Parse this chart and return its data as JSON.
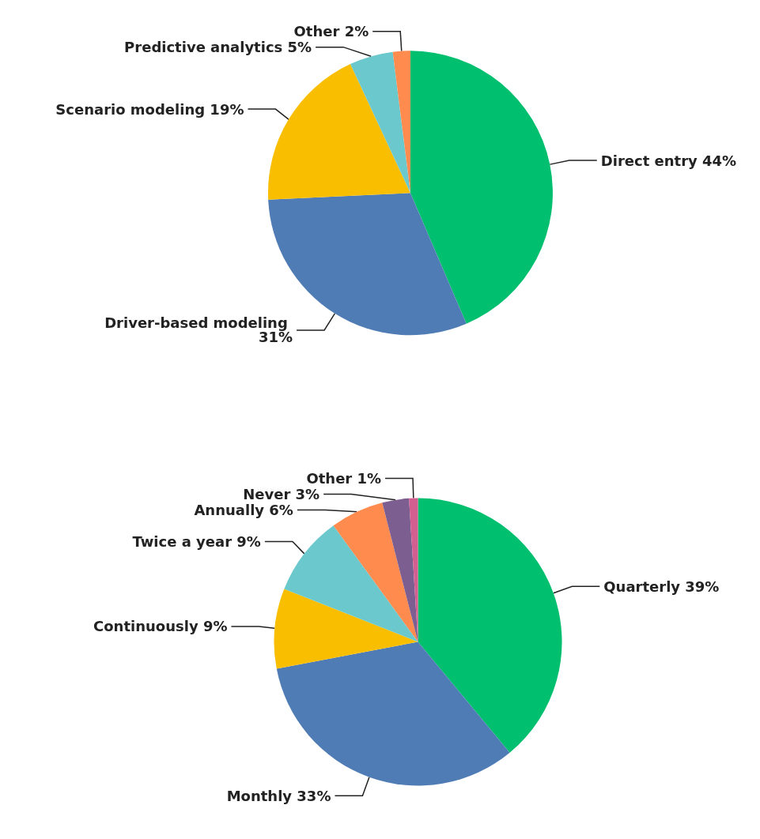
{
  "chart_data": [
    {
      "type": "pie",
      "categories": [
        "Direct entry",
        "Driver-based modeling",
        "Scenario modeling",
        "Predictive analytics",
        "Other"
      ],
      "values": [
        44,
        31,
        19,
        5,
        2
      ],
      "colors": [
        "#00bf6f",
        "#507cb6",
        "#f9be00",
        "#6bc8cd",
        "#ff8b4f"
      ],
      "value_labels": [
        "44%",
        "31%",
        "19%",
        "5%",
        "2%"
      ]
    },
    {
      "type": "pie",
      "categories": [
        "Quarterly",
        "Monthly",
        "Continuously",
        "Twice a year",
        "Annually",
        "Never",
        "Other"
      ],
      "values": [
        39,
        33,
        9,
        9,
        6,
        3,
        1
      ],
      "colors": [
        "#00bf6f",
        "#507cb6",
        "#f9be00",
        "#6bc8cd",
        "#ff8b4f",
        "#7d5e90",
        "#d25f90"
      ],
      "value_labels": [
        "39%",
        "33%",
        "9%",
        "9%",
        "6%",
        "3%",
        "1%"
      ]
    }
  ]
}
